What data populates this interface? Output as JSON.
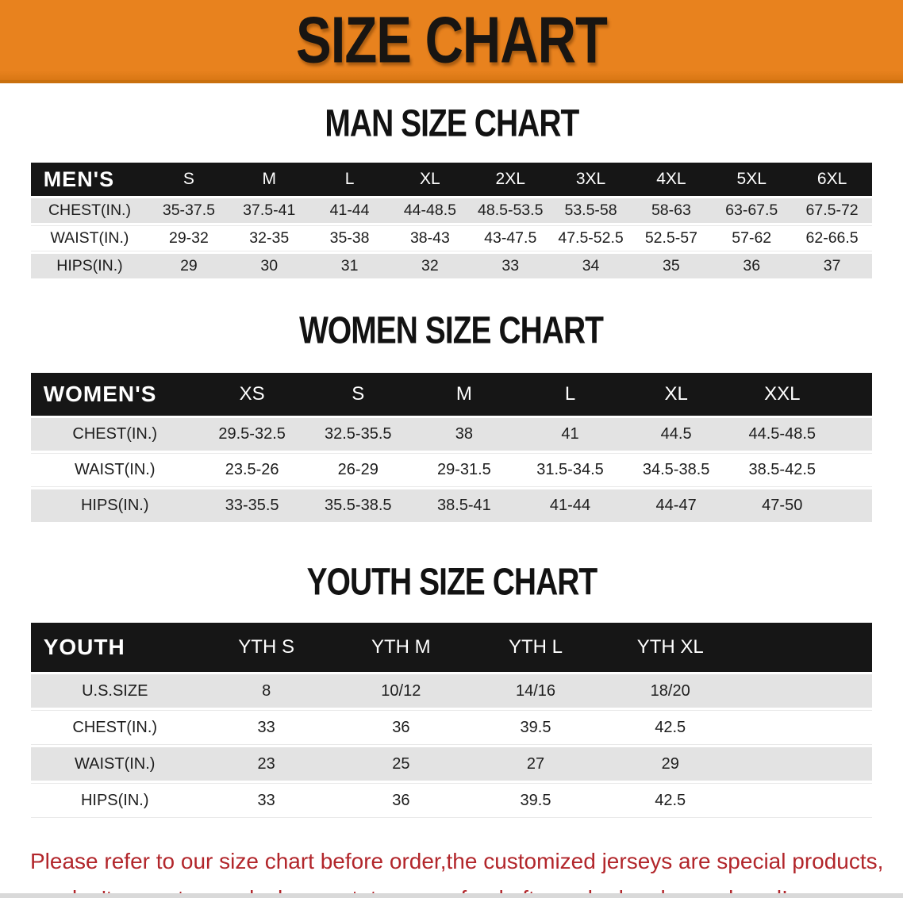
{
  "banner": {
    "title": "SIZE CHART"
  },
  "sections": [
    {
      "key": "men",
      "heading": "MAN SIZE CHART",
      "table": {
        "header_label": "MEN'S",
        "columns": [
          "S",
          "M",
          "L",
          "XL",
          "2XL",
          "3XL",
          "4XL",
          "5XL",
          "6XL"
        ],
        "rows": [
          {
            "label": "CHEST(IN.)",
            "values": [
              "35-37.5",
              "37.5-41",
              "41-44",
              "44-48.5",
              "48.5-53.5",
              "53.5-58",
              "58-63",
              "63-67.5",
              "67.5-72"
            ]
          },
          {
            "label": "WAIST(IN.)",
            "values": [
              "29-32",
              "32-35",
              "35-38",
              "38-43",
              "43-47.5",
              "47.5-52.5",
              "52.5-57",
              "57-62",
              "62-66.5"
            ]
          },
          {
            "label": "HIPS(IN.)",
            "values": [
              "29",
              "30",
              "31",
              "32",
              "33",
              "34",
              "35",
              "36",
              "37"
            ]
          }
        ]
      }
    },
    {
      "key": "women",
      "heading": "WOMEN SIZE CHART",
      "table": {
        "header_label": "WOMEN'S",
        "columns": [
          "XS",
          "S",
          "M",
          "L",
          "XL",
          "XXL"
        ],
        "rows": [
          {
            "label": "CHEST(IN.)",
            "values": [
              "29.5-32.5",
              "32.5-35.5",
              "38",
              "41",
              "44.5",
              "44.5-48.5"
            ]
          },
          {
            "label": "WAIST(IN.)",
            "values": [
              "23.5-26",
              "26-29",
              "29-31.5",
              "31.5-34.5",
              "34.5-38.5",
              "38.5-42.5"
            ]
          },
          {
            "label": "HIPS(IN.)",
            "values": [
              "33-35.5",
              "35.5-38.5",
              "38.5-41",
              "41-44",
              "44-47",
              "47-50"
            ]
          }
        ]
      }
    },
    {
      "key": "youth",
      "heading": "YOUTH SIZE CHART",
      "table": {
        "header_label": "YOUTH",
        "columns": [
          "YTH S",
          "YTH M",
          "YTH L",
          "YTH XL"
        ],
        "rows": [
          {
            "label": "U.S.SIZE",
            "values": [
              "8",
              "10/12",
              "14/16",
              "18/20"
            ]
          },
          {
            "label": "CHEST(IN.)",
            "values": [
              "33",
              "36",
              "39.5",
              "42.5"
            ]
          },
          {
            "label": "WAIST(IN.)",
            "values": [
              "23",
              "25",
              "27",
              "29"
            ]
          },
          {
            "label": "HIPS(IN.)",
            "values": [
              "33",
              "36",
              "39.5",
              "42.5"
            ]
          }
        ]
      }
    }
  ],
  "disclaimer": {
    "line1": "Please refer to our size chart before order,the customized jerseys are special products,",
    "line2": "we don't accept cancel, change, teturn or refund after order has been placed!"
  },
  "colors": {
    "banner_bg": "#E8821E",
    "banner_border": "#C9700E",
    "header_band": "#161616",
    "row_stripe": "#E3E3E3",
    "disclaimer_red": "#B2262B"
  }
}
